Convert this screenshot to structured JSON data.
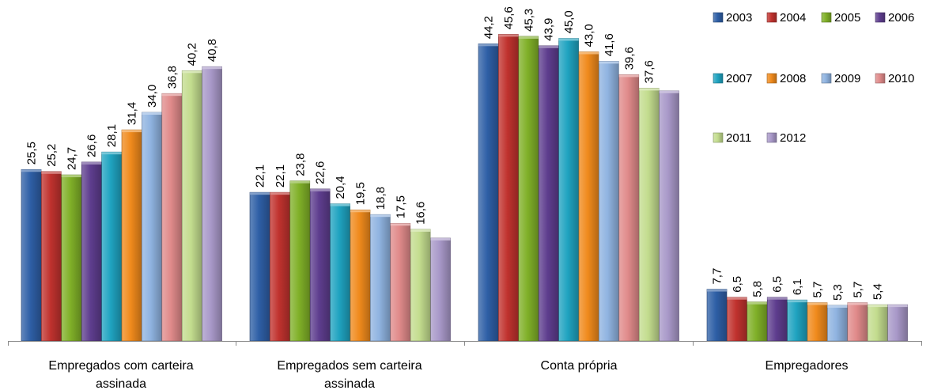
{
  "chart_data": {
    "type": "bar",
    "categories": [
      [
        "Empregados com carteira",
        "assinada"
      ],
      [
        "Empregados sem carteira",
        "assinada"
      ],
      [
        "Conta própria"
      ],
      [
        "Empregadores"
      ]
    ],
    "series": [
      {
        "name": "2003",
        "color": "#2e5fa6",
        "values": [
          25.5,
          22.1,
          44.2,
          7.7
        ]
      },
      {
        "name": "2004",
        "color": "#c0322e",
        "values": [
          25.2,
          22.1,
          45.6,
          6.5
        ]
      },
      {
        "name": "2005",
        "color": "#80b028",
        "values": [
          24.7,
          23.8,
          45.3,
          5.8
        ]
      },
      {
        "name": "2006",
        "color": "#5e3d8e",
        "values": [
          26.6,
          22.6,
          43.9,
          6.5
        ]
      },
      {
        "name": "2007",
        "color": "#1fa3c0",
        "values": [
          28.1,
          20.4,
          45.0,
          6.1
        ]
      },
      {
        "name": "2008",
        "color": "#f08a1c",
        "values": [
          31.4,
          19.5,
          43.0,
          5.7
        ]
      },
      {
        "name": "2009",
        "color": "#8fb3e0",
        "values": [
          34.0,
          18.8,
          41.6,
          5.3
        ]
      },
      {
        "name": "2010",
        "color": "#e08a8a",
        "values": [
          36.8,
          17.5,
          39.6,
          5.7
        ]
      },
      {
        "name": "2011",
        "color": "#c3dc8e",
        "values": [
          40.2,
          16.6,
          37.6,
          5.4
        ]
      },
      {
        "name": "2012",
        "color": "#a898c8",
        "values": [
          40.8,
          15.3,
          37.2,
          5.4
        ]
      }
    ],
    "labeled_series_count": [
      10,
      9,
      9,
      9
    ],
    "decimal_separator": ",",
    "ylim": [
      0,
      50
    ],
    "grid": false,
    "legend_position": "top-right"
  }
}
